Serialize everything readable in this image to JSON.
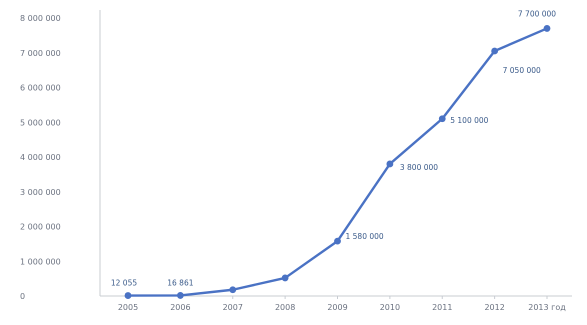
{
  "chart_data": {
    "type": "line",
    "title": "",
    "xlabel": "",
    "ylabel": "",
    "categories": [
      "2005",
      "2006",
      "2007",
      "2008",
      "2009",
      "2010",
      "2011",
      "2012",
      "2013 год"
    ],
    "series": [
      {
        "values": [
          12055,
          16861,
          180000,
          520000,
          1580000,
          3800000,
          5100000,
          7050000,
          7700000
        ],
        "labels": [
          "12 055",
          "16 861",
          "",
          "",
          "1 580 000",
          "3 800 000",
          "5 100 000",
          "7 050 000",
          "7 700 000"
        ],
        "color": "#4a72c4"
      }
    ],
    "ylim": [
      0,
      8000000
    ],
    "yticks": [
      "0",
      "1 000 000",
      "2 000 000",
      "3 000 000",
      "4 000 000",
      "5 000 000",
      "6 000 000",
      "7 000 000",
      "8 000 000"
    ],
    "grid": false,
    "legend": "none"
  }
}
